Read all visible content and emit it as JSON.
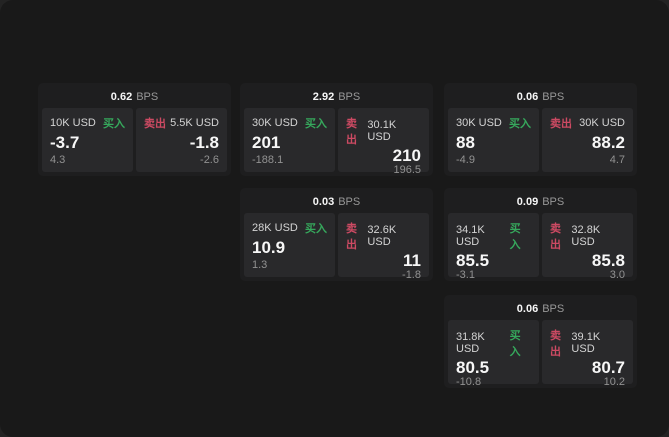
{
  "page": {
    "outer_bg": "#232323",
    "canvas_bg": "#191919",
    "card_bg": "#1e1e1f",
    "panel_bg": "#29292b",
    "buy_color": "#36a85c",
    "sell_color": "#cd4a63"
  },
  "labels": {
    "buy": "买入",
    "sell": "卖出",
    "bps_unit": "BPS"
  },
  "cards": [
    {
      "bps": "0.62",
      "buy": {
        "amount": "10K USD",
        "value": "-3.7",
        "delta": "4.3"
      },
      "sell": {
        "amount": "5.5K USD",
        "value": "-1.8",
        "delta": "-2.6"
      }
    },
    {
      "bps": "2.92",
      "buy": {
        "amount": "30K USD",
        "value": "201",
        "delta": "-188.1"
      },
      "sell": {
        "amount": "30.1K USD",
        "value": "210",
        "delta": "196.5"
      }
    },
    {
      "bps": "0.06",
      "buy": {
        "amount": "30K USD",
        "value": "88",
        "delta": "-4.9"
      },
      "sell": {
        "amount": "30K USD",
        "value": "88.2",
        "delta": "4.7"
      }
    },
    {
      "bps": "0.03",
      "buy": {
        "amount": "28K USD",
        "value": "10.9",
        "delta": "1.3"
      },
      "sell": {
        "amount": "32.6K USD",
        "value": "11",
        "delta": "-1.8"
      }
    },
    {
      "bps": "0.09",
      "buy": {
        "amount": "34.1K USD",
        "value": "85.5",
        "delta": "-3.1"
      },
      "sell": {
        "amount": "32.8K USD",
        "value": "85.8",
        "delta": "3.0"
      }
    },
    {
      "bps": "0.06",
      "buy": {
        "amount": "31.8K USD",
        "value": "80.5",
        "delta": "-10.8"
      },
      "sell": {
        "amount": "39.1K USD",
        "value": "80.7",
        "delta": "10.2"
      }
    }
  ]
}
